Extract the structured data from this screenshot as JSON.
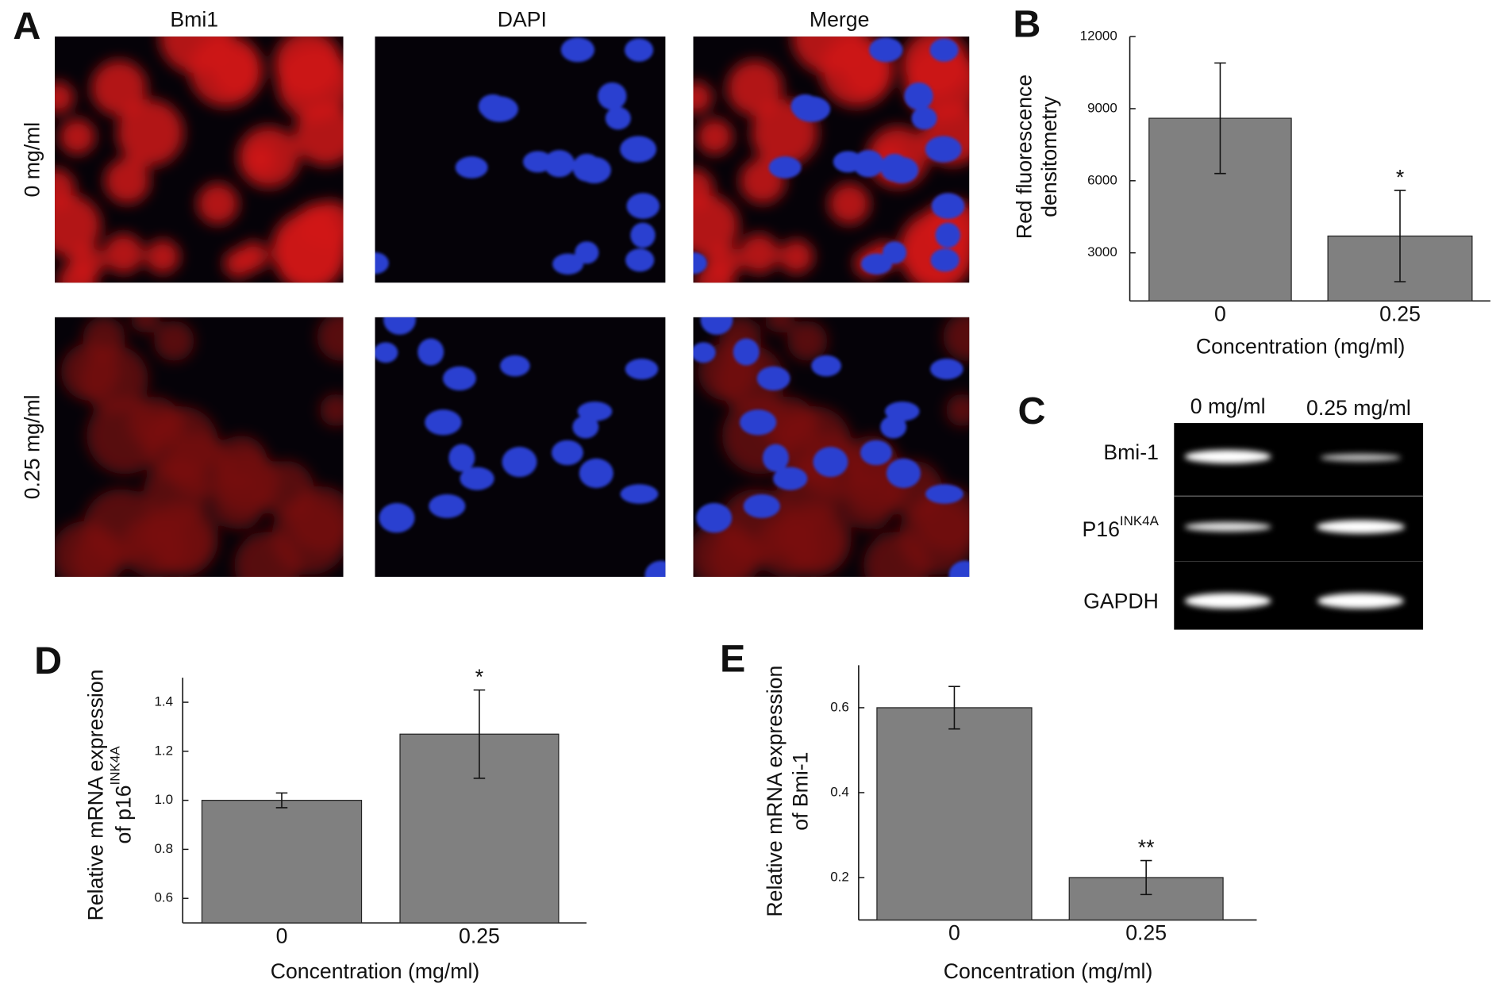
{
  "panel_a": {
    "label": "A",
    "columns": [
      "Bmi1",
      "DAPI",
      "Merge"
    ],
    "rows": [
      "0 mg/ml",
      "0.25 mg/ml"
    ]
  },
  "panel_c": {
    "label": "C",
    "columns": [
      "0 mg/ml",
      "0.25 mg/ml"
    ],
    "rows": [
      {
        "text": "Bmi-1"
      },
      {
        "text": "P16",
        "sup": "INK4A"
      },
      {
        "text": "GAPDH"
      }
    ]
  },
  "chart_data": [
    {
      "type": "bar",
      "label": "B",
      "categories": [
        "0",
        "0.25"
      ],
      "values": [
        8600,
        3700
      ],
      "errors": [
        2300,
        1900
      ],
      "value_annotations": [
        null,
        "*"
      ],
      "color": "#808080",
      "xlabel": "Concentration (mg/ml)",
      "ylabel": [
        "Red fluorescence",
        "densitometry"
      ],
      "ylim": [
        1000,
        12000
      ],
      "yticks": [
        3000,
        6000,
        9000,
        12000
      ]
    },
    {
      "type": "bar",
      "label": "D",
      "categories": [
        "0",
        "0.25"
      ],
      "values": [
        1.0,
        1.27
      ],
      "errors": [
        0.03,
        0.18
      ],
      "value_annotations": [
        null,
        "*"
      ],
      "color": "#808080",
      "xlabel": "Concentration (mg/ml)",
      "ylabel": [
        "Relative mRNA expression",
        {
          "text": "of p16",
          "sup": "INK4A"
        }
      ],
      "ylim": [
        0.5,
        1.5
      ],
      "yticks": [
        0.6,
        0.8,
        {
          "value": 1.0,
          "label": "1.0"
        },
        1.2,
        1.4
      ]
    },
    {
      "type": "bar",
      "label": "E",
      "categories": [
        "0",
        "0.25"
      ],
      "values": [
        0.6,
        0.2
      ],
      "errors": [
        0.05,
        0.04
      ],
      "value_annotations": [
        null,
        "**"
      ],
      "color": "#808080",
      "xlabel": "Concentration (mg/ml)",
      "ylabel": [
        "Relative mRNA expression",
        "of Bmi-1"
      ],
      "ylim": [
        0.1,
        0.7
      ],
      "yticks": [
        0.2,
        0.4,
        0.6
      ]
    }
  ]
}
